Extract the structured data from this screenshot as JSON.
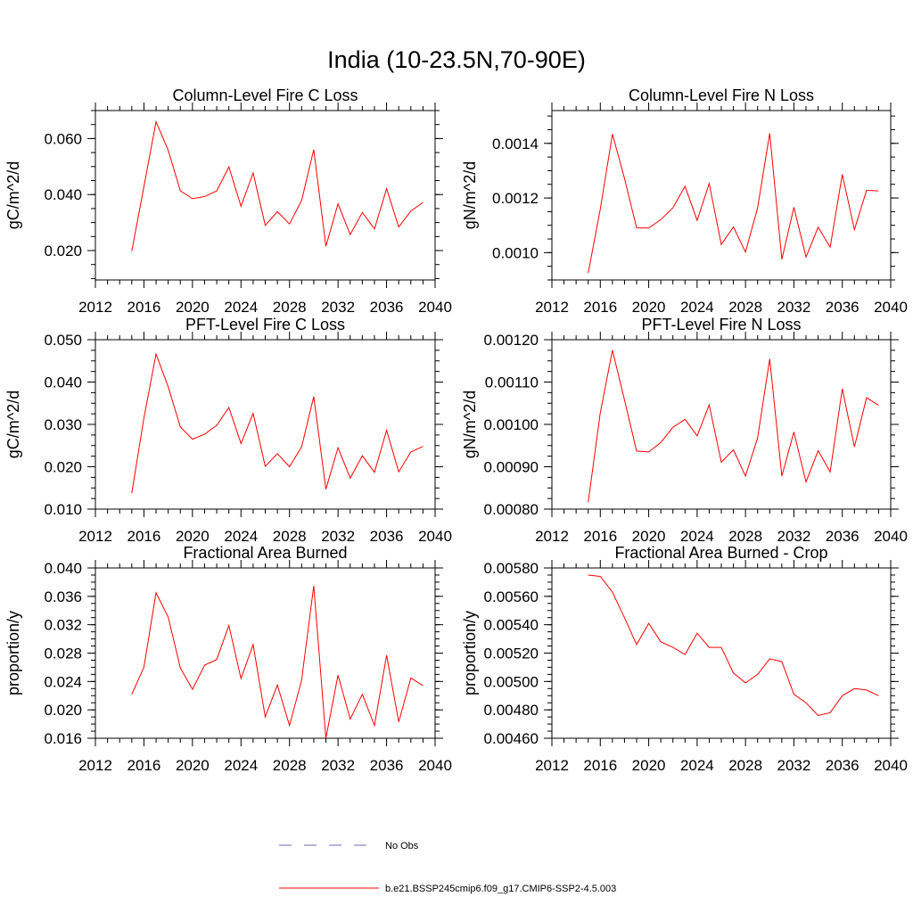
{
  "figure": {
    "title": "India (10-23.5N,70-90E)",
    "colors": {
      "model": "#ff0000",
      "obs": "#6a6ab4"
    },
    "legend": [
      {
        "label": "No Obs",
        "style": "dashed",
        "color": "#6a6ab4"
      },
      {
        "label": "b.e21.BSSP245cmip6.f09_g17.CMIP6-SSP2-4.5.003",
        "style": "solid",
        "color": "#ff0000"
      }
    ]
  },
  "chart_data": [
    {
      "type": "line",
      "title": "Column-Level Fire C Loss",
      "ylabel": "gC/m^2/d",
      "xlim": [
        2012,
        2040
      ],
      "ylim": [
        0.0095,
        0.07
      ],
      "xticks": [
        2012,
        2016,
        2020,
        2024,
        2028,
        2032,
        2036,
        2040
      ],
      "xtick_labels": [
        "2012",
        "2016",
        "2020",
        "2024",
        "2028",
        "2032",
        "2036",
        "2040"
      ],
      "yticks": [
        0.02,
        0.04,
        0.06
      ],
      "ytick_labels": [
        "0.020",
        "0.040",
        "0.060"
      ],
      "yminor": 0.005,
      "x": [
        2015,
        2016,
        2017,
        2018,
        2019,
        2020,
        2021,
        2022,
        2023,
        2024,
        2025,
        2026,
        2027,
        2028,
        2029,
        2030,
        2031,
        2032,
        2033,
        2034,
        2035,
        2036,
        2037,
        2038,
        2039
      ],
      "series": [
        {
          "name": "b.e21.BSSP245cmip6.f09_g17.CMIP6-SSP2-4.5.003",
          "values": [
            0.0198,
            0.0428,
            0.066,
            0.0559,
            0.0413,
            0.0385,
            0.0393,
            0.0413,
            0.0499,
            0.0358,
            0.0477,
            0.029,
            0.0339,
            0.0295,
            0.0379,
            0.0561,
            0.0215,
            0.0367,
            0.0257,
            0.0336,
            0.0277,
            0.0421,
            0.0284,
            0.0341,
            0.0372
          ]
        }
      ]
    },
    {
      "type": "line",
      "title": "Column-Level Fire N Loss",
      "ylabel": "gN/m^2/d",
      "xlim": [
        2012,
        2040
      ],
      "ylim": [
        0.0009,
        0.00152
      ],
      "xticks": [
        2012,
        2016,
        2020,
        2024,
        2028,
        2032,
        2036,
        2040
      ],
      "xtick_labels": [
        "2012",
        "2016",
        "2020",
        "2024",
        "2028",
        "2032",
        "2036",
        "2040"
      ],
      "yticks": [
        0.001,
        0.0012,
        0.0014
      ],
      "ytick_labels": [
        "0.0010",
        "0.0012",
        "0.0014"
      ],
      "yminor": 5e-05,
      "x": [
        2015,
        2016,
        2017,
        2018,
        2019,
        2020,
        2021,
        2022,
        2023,
        2024,
        2025,
        2026,
        2027,
        2028,
        2029,
        2030,
        2031,
        2032,
        2033,
        2034,
        2035,
        2036,
        2037,
        2038,
        2039
      ],
      "series": [
        {
          "name": "b.e21.BSSP245cmip6.f09_g17.CMIP6-SSP2-4.5.003",
          "values": [
            0.000925,
            0.00116,
            0.001434,
            0.001272,
            0.001091,
            0.00109,
            0.001121,
            0.001164,
            0.001243,
            0.001118,
            0.001253,
            0.00103,
            0.001094,
            0.001002,
            0.001164,
            0.001437,
            0.000975,
            0.001166,
            0.000984,
            0.001093,
            0.00102,
            0.001286,
            0.001084,
            0.001228,
            0.001226
          ]
        }
      ]
    },
    {
      "type": "line",
      "title": "PFT-Level Fire C Loss",
      "ylabel": "gC/m^2/d",
      "xlim": [
        2012,
        2040
      ],
      "ylim": [
        0.01,
        0.05
      ],
      "xticks": [
        2012,
        2016,
        2020,
        2024,
        2028,
        2032,
        2036,
        2040
      ],
      "xtick_labels": [
        "2012",
        "2016",
        "2020",
        "2024",
        "2028",
        "2032",
        "2036",
        "2040"
      ],
      "yticks": [
        0.01,
        0.02,
        0.03,
        0.04,
        0.05
      ],
      "ytick_labels": [
        "0.010",
        "0.020",
        "0.030",
        "0.040",
        "0.050"
      ],
      "yminor": 0.0025,
      "x": [
        2015,
        2016,
        2017,
        2018,
        2019,
        2020,
        2021,
        2022,
        2023,
        2024,
        2025,
        2026,
        2027,
        2028,
        2029,
        2030,
        2031,
        2032,
        2033,
        2034,
        2035,
        2036,
        2037,
        2038,
        2039
      ],
      "series": [
        {
          "name": "b.e21.BSSP245cmip6.f09_g17.CMIP6-SSP2-4.5.003",
          "values": [
            0.0138,
            0.0315,
            0.0466,
            0.0389,
            0.0294,
            0.0265,
            0.0277,
            0.0298,
            0.034,
            0.0255,
            0.0326,
            0.0201,
            0.0231,
            0.02,
            0.0247,
            0.0366,
            0.0147,
            0.0245,
            0.0173,
            0.0226,
            0.0187,
            0.0286,
            0.0188,
            0.0235,
            0.0248
          ]
        }
      ]
    },
    {
      "type": "line",
      "title": "PFT-Level Fire N Loss",
      "ylabel": "gN/m^2/d",
      "xlim": [
        2012,
        2040
      ],
      "ylim": [
        0.0008,
        0.0012
      ],
      "xticks": [
        2012,
        2016,
        2020,
        2024,
        2028,
        2032,
        2036,
        2040
      ],
      "xtick_labels": [
        "2012",
        "2016",
        "2020",
        "2024",
        "2028",
        "2032",
        "2036",
        "2040"
      ],
      "yticks": [
        0.0008,
        0.0009,
        0.001,
        0.0011,
        0.0012
      ],
      "ytick_labels": [
        "0.00080",
        "0.00090",
        "0.00100",
        "0.00110",
        "0.00120"
      ],
      "yminor": 2.5e-05,
      "x": [
        2015,
        2016,
        2017,
        2018,
        2019,
        2020,
        2021,
        2022,
        2023,
        2024,
        2025,
        2026,
        2027,
        2028,
        2029,
        2030,
        2031,
        2032,
        2033,
        2034,
        2035,
        2036,
        2037,
        2038,
        2039
      ],
      "series": [
        {
          "name": "b.e21.BSSP245cmip6.f09_g17.CMIP6-SSP2-4.5.003",
          "values": [
            0.000816,
            0.001028,
            0.001175,
            0.001058,
            0.000937,
            0.000935,
            0.000957,
            0.000993,
            0.001012,
            0.000973,
            0.001046,
            0.000911,
            0.00094,
            0.000878,
            0.000968,
            0.001155,
            0.000878,
            0.000982,
            0.000864,
            0.000938,
            0.000888,
            0.001084,
            0.000947,
            0.001063,
            0.001045
          ]
        }
      ]
    },
    {
      "type": "line",
      "title": "Fractional Area Burned",
      "ylabel": "proportion/y",
      "xlim": [
        2012,
        2040
      ],
      "ylim": [
        0.016,
        0.04
      ],
      "xticks": [
        2012,
        2016,
        2020,
        2024,
        2028,
        2032,
        2036,
        2040
      ],
      "xtick_labels": [
        "2012",
        "2016",
        "2020",
        "2024",
        "2028",
        "2032",
        "2036",
        "2040"
      ],
      "yticks": [
        0.016,
        0.02,
        0.024,
        0.028,
        0.032,
        0.036,
        0.04
      ],
      "ytick_labels": [
        "0.016",
        "0.020",
        "0.024",
        "0.028",
        "0.032",
        "0.036",
        "0.040"
      ],
      "yminor": 0.001,
      "x": [
        2015,
        2016,
        2017,
        2018,
        2019,
        2020,
        2021,
        2022,
        2023,
        2024,
        2025,
        2026,
        2027,
        2028,
        2029,
        2030,
        2031,
        2032,
        2033,
        2034,
        2035,
        2036,
        2037,
        2038,
        2039
      ],
      "series": [
        {
          "name": "b.e21.BSSP245cmip6.f09_g17.CMIP6-SSP2-4.5.003",
          "values": [
            0.0222,
            0.026,
            0.0365,
            0.0331,
            0.0259,
            0.0229,
            0.0263,
            0.0271,
            0.0319,
            0.0244,
            0.0292,
            0.019,
            0.0235,
            0.0178,
            0.0242,
            0.0375,
            0.016,
            0.0249,
            0.0187,
            0.0222,
            0.0178,
            0.0277,
            0.0183,
            0.0245,
            0.0234
          ]
        }
      ]
    },
    {
      "type": "line",
      "title": "Fractional Area Burned - Crop",
      "ylabel": "proportion/y",
      "xlim": [
        2012,
        2040
      ],
      "ylim": [
        0.0046,
        0.0058
      ],
      "xticks": [
        2012,
        2016,
        2020,
        2024,
        2028,
        2032,
        2036,
        2040
      ],
      "xtick_labels": [
        "2012",
        "2016",
        "2020",
        "2024",
        "2028",
        "2032",
        "2036",
        "2040"
      ],
      "yticks": [
        0.0046,
        0.0048,
        0.005,
        0.0052,
        0.0054,
        0.0056,
        0.0058
      ],
      "ytick_labels": [
        "0.00460",
        "0.00480",
        "0.00500",
        "0.00520",
        "0.00540",
        "0.00560",
        "0.00580"
      ],
      "yminor": 5e-05,
      "x": [
        2015,
        2016,
        2017,
        2018,
        2019,
        2020,
        2021,
        2022,
        2023,
        2024,
        2025,
        2026,
        2027,
        2028,
        2029,
        2030,
        2031,
        2032,
        2033,
        2034,
        2035,
        2036,
        2037,
        2038,
        2039
      ],
      "series": [
        {
          "name": "b.e21.BSSP245cmip6.f09_g17.CMIP6-SSP2-4.5.003",
          "values": [
            0.00575,
            0.00574,
            0.00563,
            0.00545,
            0.00526,
            0.00541,
            0.00528,
            0.00524,
            0.00519,
            0.00534,
            0.00524,
            0.00524,
            0.00506,
            0.00499,
            0.00505,
            0.00516,
            0.00514,
            0.00491,
            0.00485,
            0.00476,
            0.00478,
            0.0049,
            0.00495,
            0.00494,
            0.0049
          ]
        }
      ]
    }
  ]
}
